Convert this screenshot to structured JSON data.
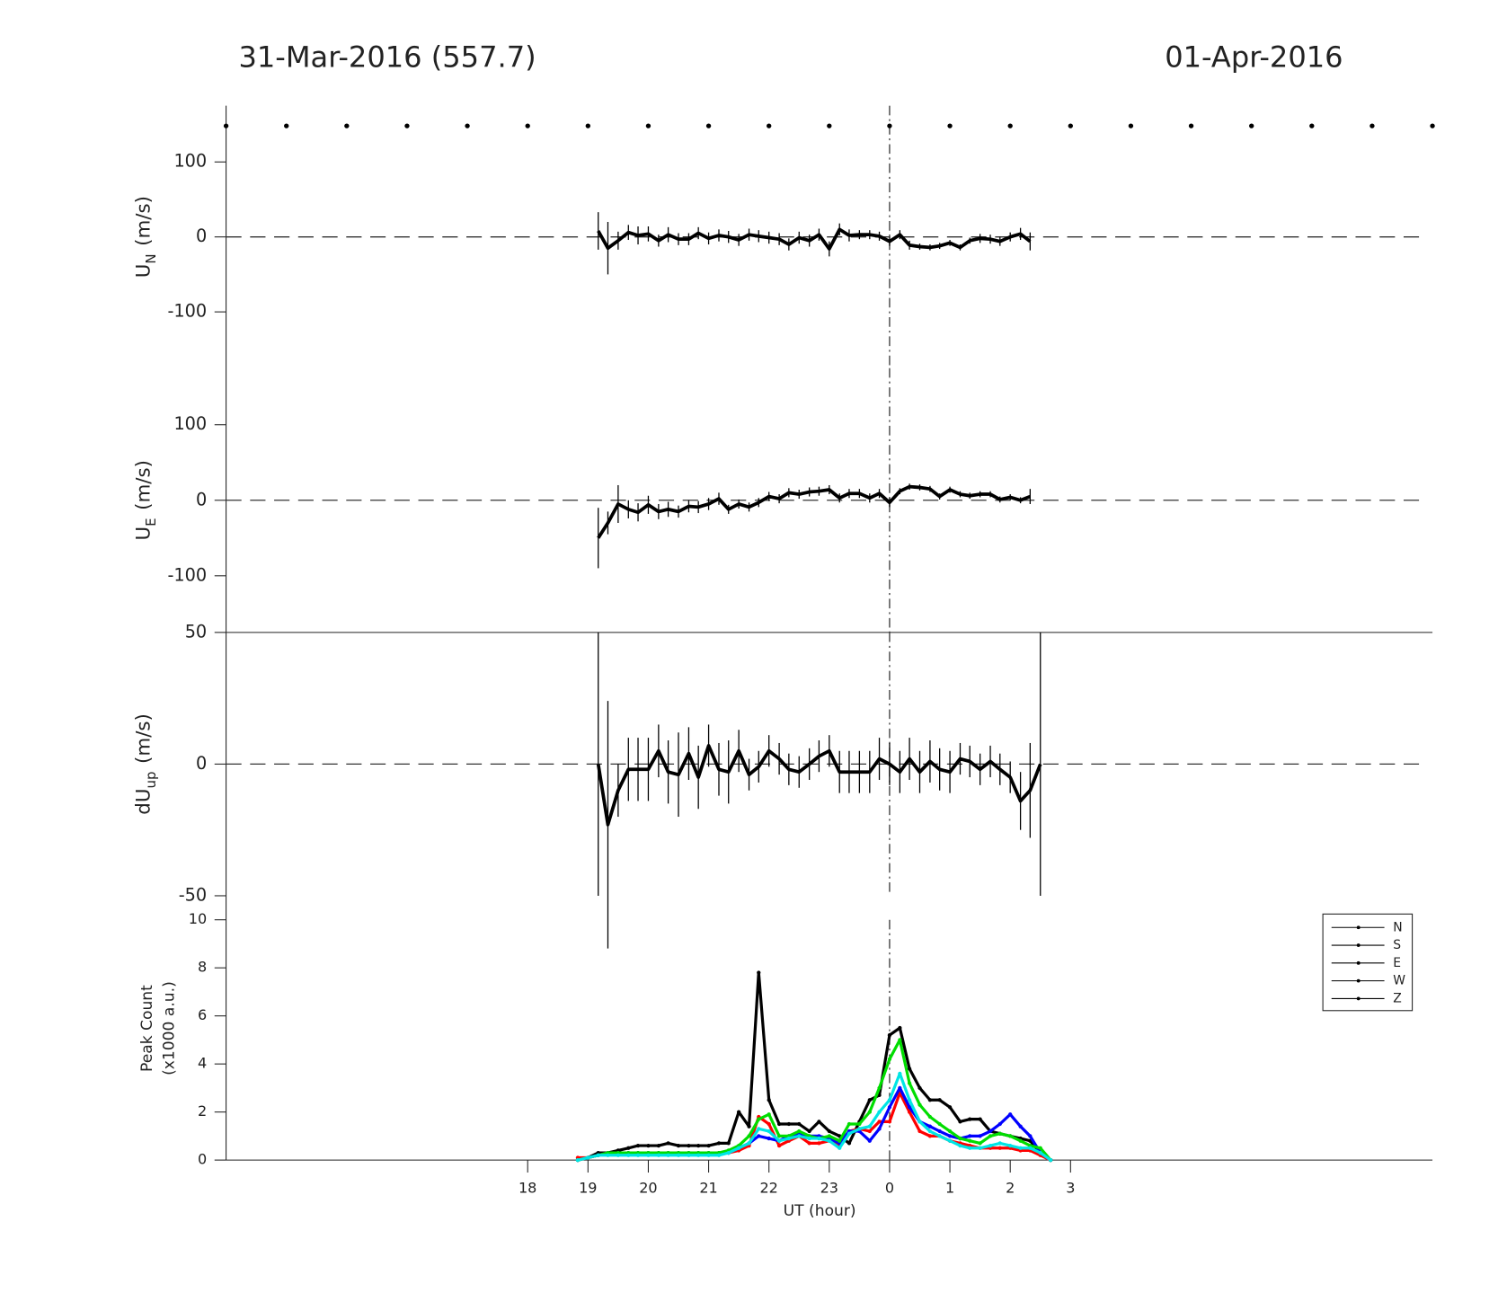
{
  "chart_data": [
    {
      "type": "line",
      "title_left": "31-Mar-2016 (557.7)",
      "title_right": "01-Apr-2016",
      "ylabel": {
        "text": "U",
        "sub": "N",
        "unit": "(m/s)"
      },
      "xlim": [
        13,
        33
      ],
      "ylim": [
        -175,
        175
      ],
      "yticks": [
        -100,
        0,
        100
      ],
      "hline": 0,
      "vline": 24,
      "hour_markers": true,
      "series": [
        {
          "color": "#000000",
          "x": [
            19.17,
            19.33,
            19.5,
            19.67,
            19.83,
            20,
            20.17,
            20.33,
            20.5,
            20.67,
            20.83,
            21,
            21.17,
            21.33,
            21.5,
            21.67,
            21.83,
            22,
            22.17,
            22.33,
            22.5,
            22.67,
            22.83,
            23,
            23.17,
            23.33,
            23.5,
            23.67,
            23.83,
            24,
            24.17,
            24.33,
            24.5,
            24.67,
            24.83,
            25,
            25.17,
            25.33,
            25.5,
            25.67,
            25.83,
            26,
            26.17,
            26.33
          ],
          "values": [
            8,
            -15,
            -5,
            6,
            2,
            4,
            -5,
            3,
            -3,
            -3,
            5,
            -2,
            2,
            0,
            -4,
            3,
            1,
            -1,
            -3,
            -10,
            -1,
            -5,
            3,
            -16,
            10,
            2,
            3,
            3,
            1,
            -6,
            3,
            -11,
            -13,
            -14,
            -12,
            -8,
            -14,
            -5,
            -2,
            -3,
            -6,
            0,
            4,
            -6
          ],
          "errors": [
            25,
            35,
            12,
            10,
            12,
            10,
            8,
            10,
            8,
            8,
            8,
            8,
            8,
            8,
            8,
            8,
            8,
            8,
            8,
            8,
            8,
            8,
            8,
            10,
            8,
            8,
            6,
            6,
            6,
            6,
            6,
            6,
            4,
            4,
            4,
            4,
            4,
            4,
            6,
            6,
            6,
            6,
            8,
            12
          ]
        }
      ]
    },
    {
      "type": "line",
      "ylabel": {
        "text": "U",
        "sub": "E",
        "unit": "(m/s)"
      },
      "xlim": [
        13,
        33
      ],
      "ylim": [
        -175,
        175
      ],
      "yticks": [
        -100,
        0,
        100
      ],
      "hline": 0,
      "vline": 24,
      "series": [
        {
          "color": "#000000",
          "x": [
            19.17,
            19.33,
            19.5,
            19.67,
            19.83,
            20,
            20.17,
            20.33,
            20.5,
            20.67,
            20.83,
            21,
            21.17,
            21.33,
            21.5,
            21.67,
            21.83,
            22,
            22.17,
            22.33,
            22.5,
            22.67,
            22.83,
            23,
            23.17,
            23.33,
            23.5,
            23.67,
            23.83,
            24,
            24.17,
            24.33,
            24.5,
            24.67,
            24.83,
            25,
            25.17,
            25.33,
            25.5,
            25.67,
            25.83,
            26,
            26.17,
            26.33
          ],
          "values": [
            -50,
            -30,
            -5,
            -12,
            -16,
            -6,
            -15,
            -12,
            -15,
            -8,
            -9,
            -5,
            2,
            -12,
            -5,
            -9,
            -3,
            5,
            2,
            10,
            8,
            11,
            12,
            14,
            3,
            9,
            9,
            3,
            9,
            -3,
            12,
            18,
            17,
            15,
            5,
            14,
            8,
            6,
            8,
            8,
            1,
            4,
            0,
            5
          ],
          "errors": [
            40,
            15,
            25,
            12,
            12,
            12,
            10,
            10,
            8,
            8,
            8,
            8,
            8,
            6,
            6,
            6,
            6,
            6,
            6,
            6,
            6,
            6,
            6,
            6,
            6,
            6,
            6,
            6,
            6,
            6,
            4,
            4,
            4,
            4,
            4,
            4,
            4,
            4,
            4,
            4,
            4,
            4,
            4,
            10
          ]
        }
      ]
    },
    {
      "type": "line",
      "ylabel": {
        "text": "dU",
        "sub": "up",
        "unit": "(m/s)"
      },
      "xlim": [
        13,
        33
      ],
      "ylim": [
        -50,
        50
      ],
      "yticks": [
        -50,
        0,
        50
      ],
      "hline": 0,
      "vline": 24,
      "top_frame": true,
      "series": [
        {
          "color": "#000000",
          "x": [
            19.17,
            19.33,
            19.5,
            19.67,
            19.83,
            20,
            20.17,
            20.33,
            20.5,
            20.67,
            20.83,
            21,
            21.17,
            21.33,
            21.5,
            21.67,
            21.83,
            22,
            22.17,
            22.33,
            22.5,
            22.67,
            22.83,
            23,
            23.17,
            23.33,
            23.5,
            23.67,
            23.83,
            24,
            24.17,
            24.33,
            24.5,
            24.67,
            24.83,
            25,
            25.17,
            25.33,
            25.5,
            25.67,
            25.83,
            26,
            26.17,
            26.33,
            26.5
          ],
          "values": [
            0,
            -23,
            -10,
            -2,
            -2,
            -2,
            5,
            -3,
            -4,
            4,
            -5,
            7,
            -2,
            -3,
            5,
            -4,
            -1,
            5,
            2,
            -2,
            -3,
            0,
            3,
            5,
            -3,
            -3,
            -3,
            -3,
            2,
            0,
            -3,
            2,
            -3,
            1,
            -2,
            -3,
            2,
            1,
            -2,
            1,
            -2,
            -5,
            -14,
            -10,
            0
          ],
          "errors": [
            50,
            47,
            10,
            12,
            12,
            12,
            10,
            12,
            16,
            10,
            12,
            8,
            10,
            12,
            8,
            6,
            6,
            6,
            6,
            6,
            6,
            6,
            6,
            6,
            8,
            8,
            8,
            8,
            8,
            8,
            8,
            8,
            8,
            8,
            8,
            8,
            6,
            6,
            6,
            6,
            6,
            6,
            11,
            18,
            50
          ]
        }
      ]
    },
    {
      "type": "line",
      "ylabel_lines": [
        "Peak Count",
        "(x1000 a.u.)"
      ],
      "xlabel": "UT (hour)",
      "xlim": [
        13,
        33
      ],
      "ylim": [
        0,
        10
      ],
      "yticks": [
        0,
        2,
        4,
        6,
        8,
        10
      ],
      "vline": 24,
      "markers": true,
      "xticks": [
        18,
        19,
        20,
        21,
        22,
        23,
        {
          "value": 24,
          "label": "0"
        },
        {
          "value": 25,
          "label": "1"
        },
        {
          "value": 26,
          "label": "2"
        },
        {
          "value": 27,
          "label": "3"
        }
      ],
      "legend": "upper right",
      "legend_line_color": "#000000",
      "x": [
        18.83,
        19,
        19.17,
        19.33,
        19.5,
        19.67,
        19.83,
        20,
        20.17,
        20.33,
        20.5,
        20.67,
        20.83,
        21,
        21.17,
        21.33,
        21.5,
        21.67,
        21.83,
        22,
        22.17,
        22.33,
        22.5,
        22.67,
        22.83,
        23,
        23.17,
        23.33,
        23.5,
        23.67,
        23.83,
        24,
        24.17,
        24.33,
        24.5,
        24.67,
        24.83,
        25,
        25.17,
        25.33,
        25.5,
        25.67,
        25.83,
        26,
        26.17,
        26.33,
        26.5,
        26.67
      ],
      "series": [
        {
          "name": "N",
          "color": "#000000",
          "values": [
            0,
            0.1,
            0.3,
            0.3,
            0.4,
            0.5,
            0.6,
            0.6,
            0.6,
            0.7,
            0.6,
            0.6,
            0.6,
            0.6,
            0.7,
            0.7,
            2.0,
            1.4,
            7.8,
            2.5,
            1.5,
            1.5,
            1.5,
            1.2,
            1.6,
            1.2,
            1.0,
            0.7,
            1.6,
            2.5,
            2.7,
            5.2,
            5.5,
            3.8,
            3.0,
            2.5,
            2.5,
            2.2,
            1.6,
            1.7,
            1.7,
            1.2,
            1.1,
            1.0,
            0.9,
            0.8,
            0.3,
            0
          ]
        },
        {
          "name": "S",
          "color": "#ff0000",
          "values": [
            0.1,
            0.1,
            0.2,
            0.3,
            0.3,
            0.3,
            0.3,
            0.3,
            0.3,
            0.3,
            0.3,
            0.3,
            0.3,
            0.3,
            0.3,
            0.3,
            0.4,
            0.6,
            1.8,
            1.5,
            0.6,
            0.8,
            1.0,
            0.7,
            0.7,
            0.8,
            0.6,
            1.2,
            1.3,
            1.2,
            1.6,
            1.6,
            2.8,
            2.0,
            1.2,
            1.0,
            1.0,
            0.8,
            0.7,
            0.6,
            0.5,
            0.5,
            0.5,
            0.5,
            0.4,
            0.4,
            0.2,
            0
          ]
        },
        {
          "name": "E",
          "color": "#0000ff",
          "values": [
            0,
            0.1,
            0.2,
            0.3,
            0.3,
            0.3,
            0.3,
            0.3,
            0.3,
            0.3,
            0.3,
            0.3,
            0.3,
            0.3,
            0.3,
            0.3,
            0.5,
            0.7,
            1.0,
            0.9,
            0.8,
            1.0,
            1.1,
            1.0,
            1.0,
            0.9,
            0.7,
            1.2,
            1.2,
            0.8,
            1.3,
            2.2,
            3.0,
            2.2,
            1.6,
            1.4,
            1.2,
            1.0,
            0.9,
            1.0,
            1.0,
            1.2,
            1.5,
            1.9,
            1.4,
            1.0,
            0.3,
            0
          ]
        },
        {
          "name": "W",
          "color": "#00dd00",
          "values": [
            0,
            0.1,
            0.2,
            0.3,
            0.3,
            0.3,
            0.3,
            0.3,
            0.3,
            0.3,
            0.3,
            0.3,
            0.3,
            0.3,
            0.3,
            0.4,
            0.6,
            1.0,
            1.7,
            1.9,
            1.0,
            1.0,
            1.2,
            1.0,
            0.9,
            1.0,
            0.8,
            1.5,
            1.5,
            2.0,
            3.0,
            4.2,
            5.0,
            3.2,
            2.3,
            1.8,
            1.5,
            1.2,
            0.9,
            0.8,
            0.7,
            1.0,
            1.1,
            1.0,
            0.8,
            0.6,
            0.5,
            0
          ]
        },
        {
          "name": "Z",
          "color": "#00e5e5",
          "values": [
            0,
            0.1,
            0.2,
            0.2,
            0.2,
            0.2,
            0.2,
            0.2,
            0.2,
            0.2,
            0.2,
            0.2,
            0.2,
            0.2,
            0.2,
            0.3,
            0.5,
            0.7,
            1.3,
            1.2,
            0.8,
            0.9,
            1.0,
            0.9,
            0.9,
            0.8,
            0.5,
            1.1,
            1.3,
            1.4,
            2.0,
            2.5,
            3.6,
            2.5,
            1.6,
            1.2,
            1.0,
            0.8,
            0.6,
            0.5,
            0.5,
            0.6,
            0.7,
            0.6,
            0.5,
            0.5,
            0.3,
            0
          ]
        }
      ]
    }
  ]
}
